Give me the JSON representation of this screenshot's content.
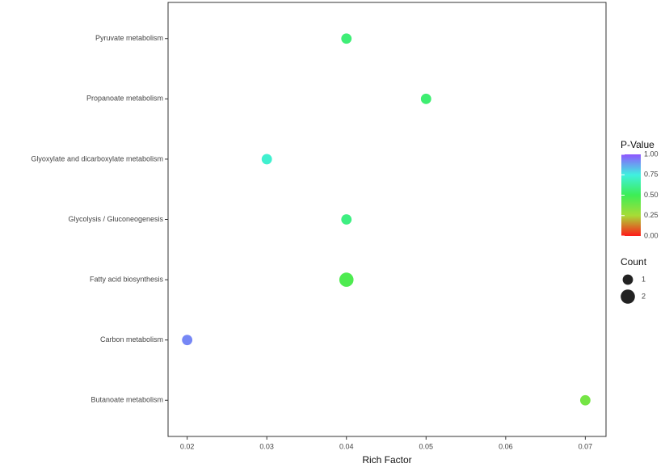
{
  "chart_data": {
    "type": "bubble",
    "categories": [
      "Pyruvate metabolism",
      "Propanoate metabolism",
      "Glyoxylate and dicarboxylate metabolism",
      "Glycolysis / Gluconeogenesis",
      "Fatty acid biosynthesis",
      "Carbon metabolism",
      "Butanoate metabolism"
    ],
    "values": [
      0.04,
      0.05,
      0.03,
      0.04,
      0.04,
      0.02,
      0.07
    ],
    "pvalues": [
      0.56,
      0.55,
      0.72,
      0.58,
      0.46,
      0.92,
      0.37
    ],
    "counts": [
      1,
      1,
      1,
      1,
      2,
      1,
      1
    ],
    "xlabel": "Rich Factor",
    "xlim": [
      0.0176,
      0.0726
    ],
    "xticks": [
      0.02,
      0.03,
      0.04,
      0.05,
      0.06,
      0.07
    ],
    "color_title": "P-Value",
    "clim": [
      0,
      1
    ],
    "cticks": [
      {
        "value": 0,
        "label": "0.00"
      },
      {
        "value": 0.25,
        "label": "0.25"
      },
      {
        "value": 0.5,
        "label": "0.50"
      },
      {
        "value": 0.75,
        "label": "0.75"
      },
      {
        "value": 1,
        "label": "1.00"
      }
    ],
    "colorscale": [
      "#ff1a1a",
      "#a8dc36",
      "#3dee55",
      "#40f0e0",
      "#8f55ff"
    ],
    "size_title": "Count",
    "size_legend": [
      1,
      2
    ]
  }
}
